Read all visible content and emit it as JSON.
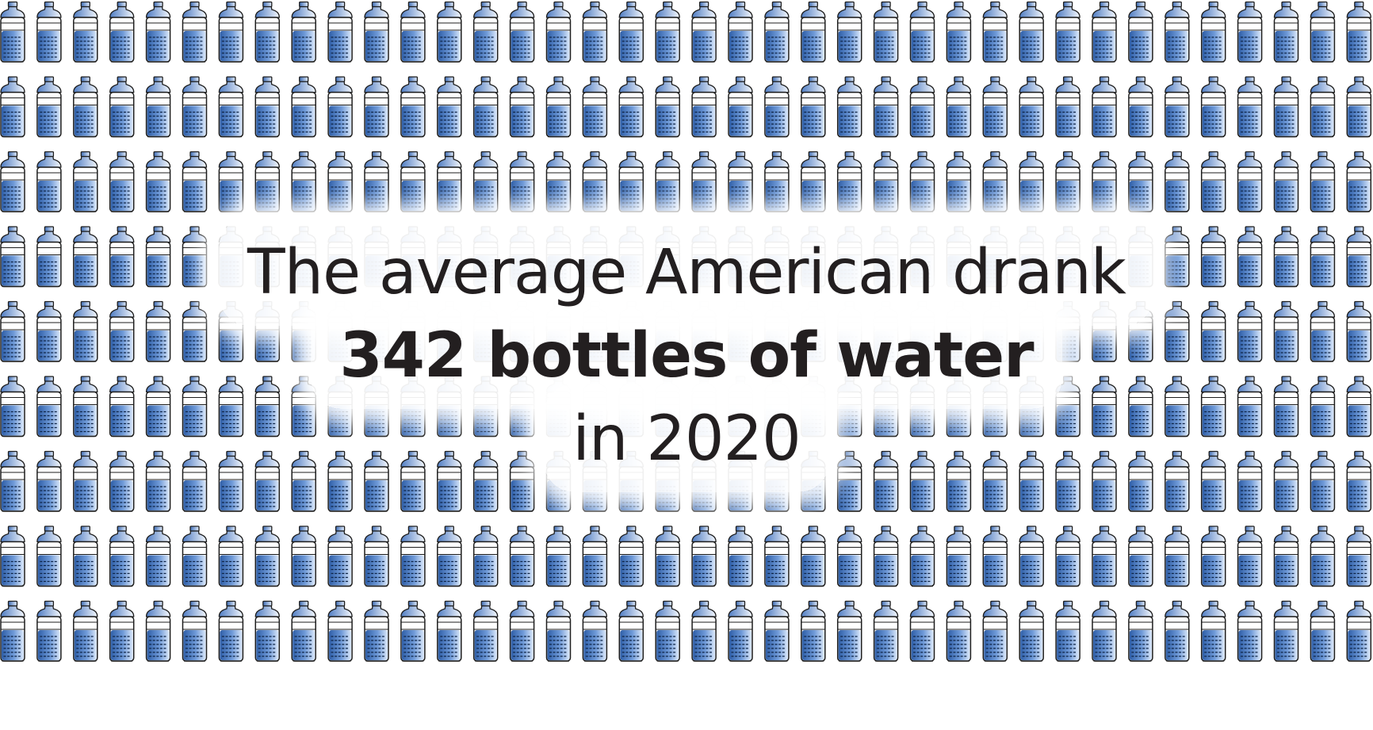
{
  "infographic": {
    "headline_line1": "The average American drank",
    "headline_line2": "342 bottles of water",
    "headline_line3": "in 2020",
    "bottle_count": 342,
    "icon": "water-bottle-icon",
    "colors": {
      "text": "#231f20",
      "water_dark": "#2f5fa8",
      "water_light": "#dbe8fa",
      "outline": "#1d1d1d",
      "background": "#ffffff"
    }
  }
}
